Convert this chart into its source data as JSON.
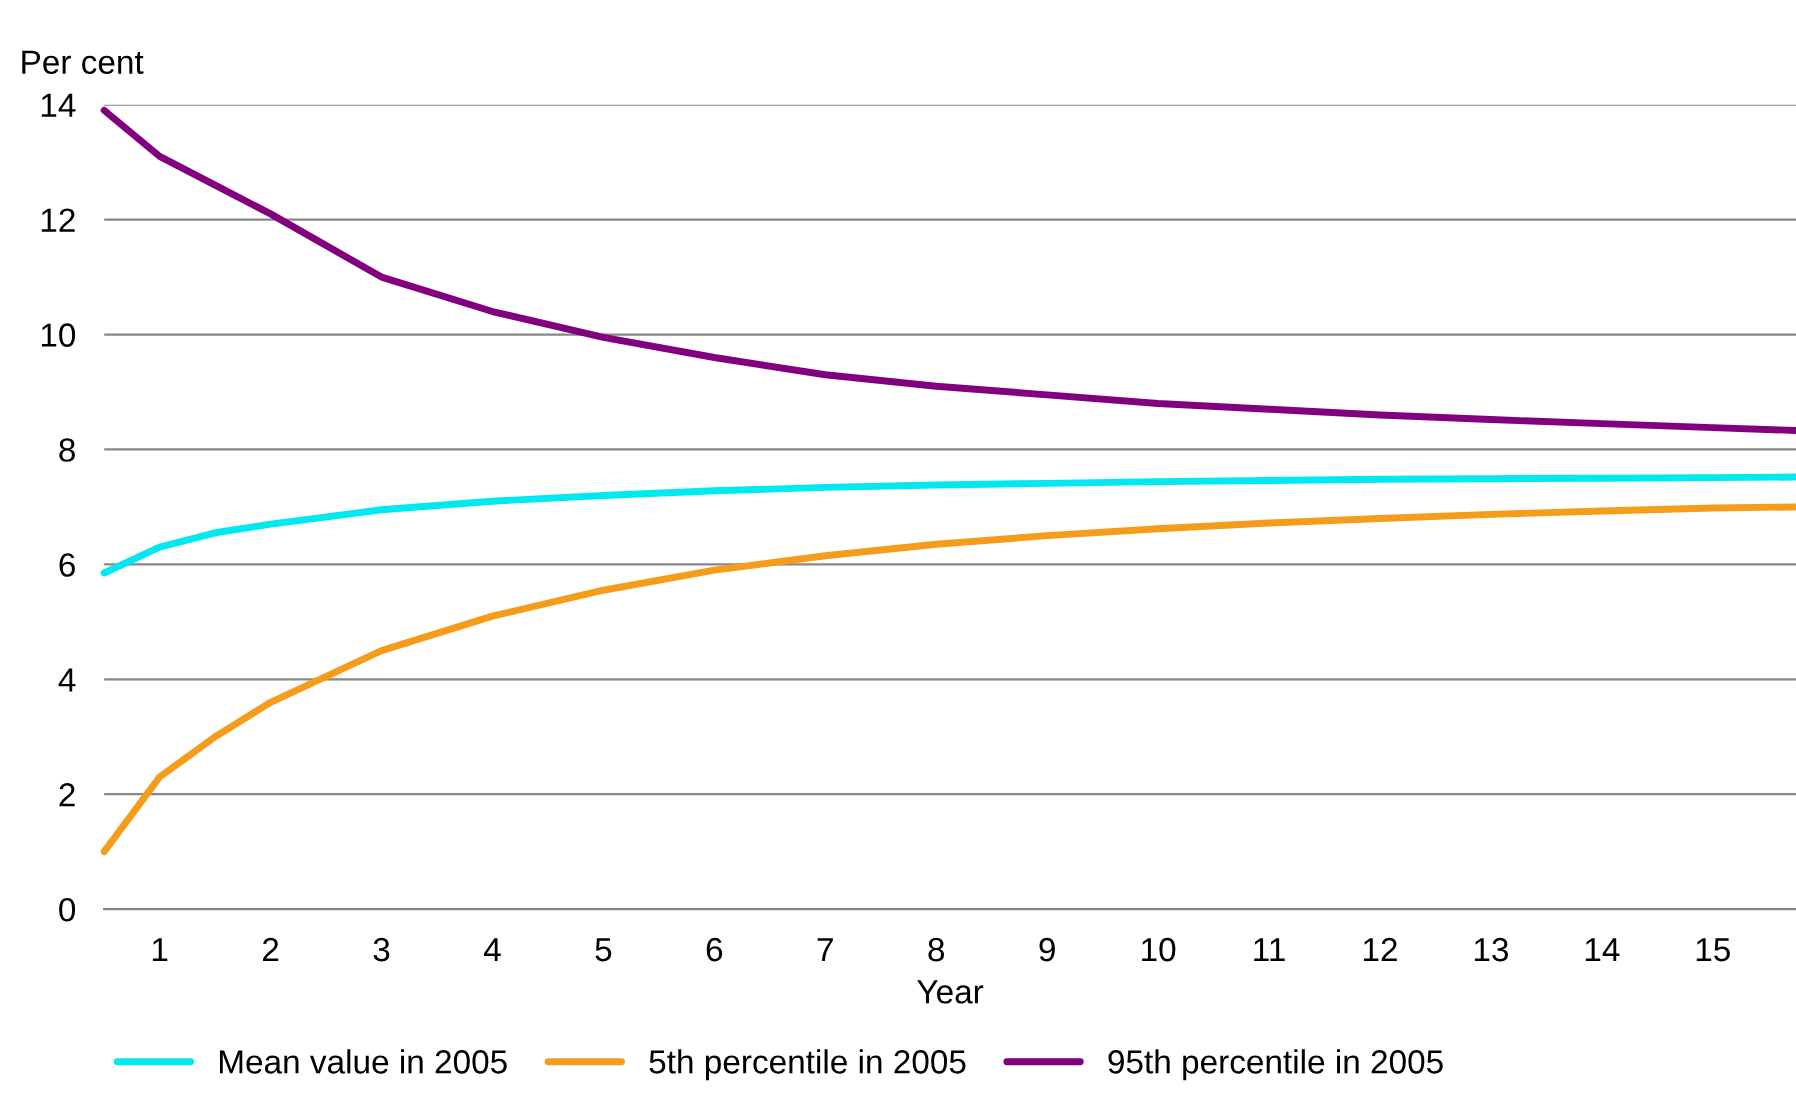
{
  "chart_data": {
    "type": "line",
    "ylabel": "Per cent",
    "xlabel": "Year",
    "x": [
      0.5,
      1,
      1.5,
      2,
      3,
      4,
      5,
      6,
      7,
      8,
      9,
      10,
      11,
      12,
      13,
      14,
      15,
      15.75
    ],
    "series": [
      {
        "name": "Mean value in 2005",
        "color": "#00e8f0",
        "values": [
          5.85,
          6.3,
          6.55,
          6.7,
          6.95,
          7.1,
          7.2,
          7.28,
          7.34,
          7.38,
          7.41,
          7.44,
          7.46,
          7.48,
          7.49,
          7.5,
          7.51,
          7.52
        ]
      },
      {
        "name": "5th percentile in 2005",
        "color": "#f59c1a",
        "values": [
          1.0,
          2.3,
          3.0,
          3.6,
          4.5,
          5.1,
          5.55,
          5.9,
          6.15,
          6.35,
          6.5,
          6.62,
          6.72,
          6.8,
          6.87,
          6.93,
          6.98,
          7.0
        ]
      },
      {
        "name": "95th percentile in 2005",
        "color": "#820080",
        "values": [
          13.9,
          13.1,
          12.6,
          12.1,
          11.0,
          10.4,
          9.95,
          9.6,
          9.3,
          9.1,
          8.95,
          8.8,
          8.7,
          8.6,
          8.52,
          8.45,
          8.38,
          8.33
        ]
      }
    ],
    "xlim": [
      0.5,
      15.75
    ],
    "xticks": [
      1,
      2,
      3,
      4,
      5,
      6,
      7,
      8,
      9,
      10,
      11,
      12,
      13,
      14,
      15
    ],
    "ylim": [
      0,
      14
    ],
    "yticks": [
      0,
      2,
      4,
      6,
      8,
      10,
      12,
      14
    ],
    "grid": "y",
    "legend": "bottom",
    "marker": "none",
    "line_style": "solid"
  }
}
